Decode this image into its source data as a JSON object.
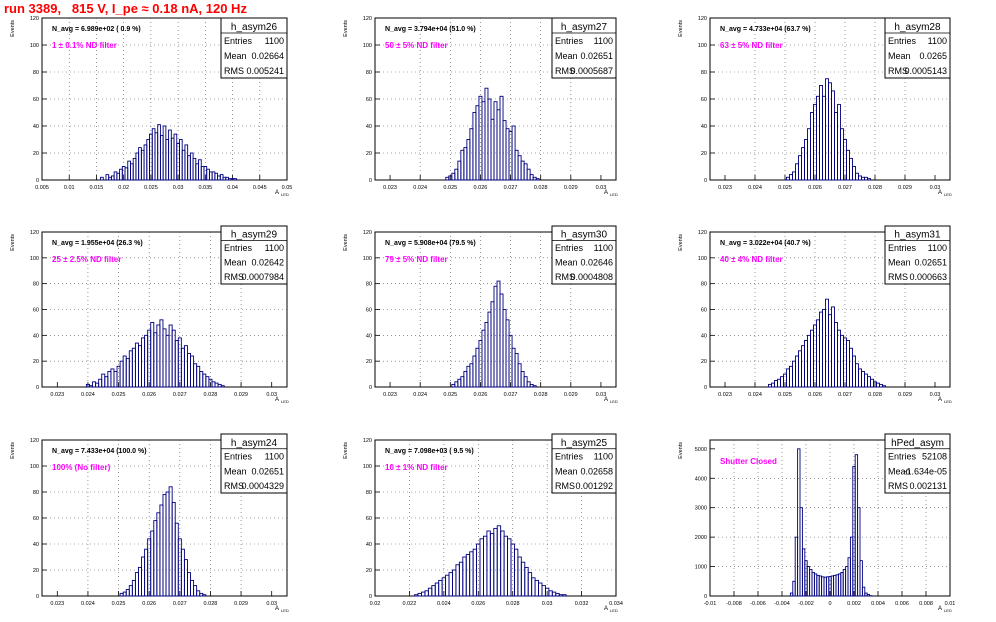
{
  "page": {
    "title": "run 3389,   815 V, I_pe ≈ 0.18 nA, 120 Hz"
  },
  "common": {
    "ylabel": "Events",
    "xlabel": "A",
    "xlabel_sub": "LED",
    "stats_labels": [
      "Entries",
      "Mean",
      "RMS"
    ]
  },
  "chart_data": [
    {
      "type": "bar",
      "hist": "h_asym26",
      "info": "N_avg = 6.989e+02 ( 0.9 %)",
      "filter": "1 ± 0.1% ND filter",
      "entries": "1100",
      "mean": "0.02664",
      "rms": "0.005241",
      "xlim": [
        0.005,
        0.05
      ],
      "ylim": [
        0,
        120
      ],
      "xticks": [
        "0.005",
        "0.01",
        "0.015",
        "0.02",
        "0.025",
        "0.03",
        "0.035",
        "0.04",
        "0.045",
        "0.05"
      ],
      "yticks": [
        "0",
        "20",
        "40",
        "60",
        "80",
        "100",
        "120"
      ],
      "x": [
        0.016,
        0.0165,
        0.017,
        0.0175,
        0.018,
        0.0185,
        0.019,
        0.0195,
        0.02,
        0.0205,
        0.021,
        0.0215,
        0.022,
        0.0225,
        0.023,
        0.0235,
        0.024,
        0.0245,
        0.025,
        0.0255,
        0.026,
        0.0265,
        0.027,
        0.0275,
        0.028,
        0.0285,
        0.029,
        0.0295,
        0.03,
        0.0305,
        0.031,
        0.0315,
        0.032,
        0.0325,
        0.033,
        0.0335,
        0.034,
        0.0345,
        0.035,
        0.0355,
        0.036,
        0.0365,
        0.037,
        0.0375,
        0.038,
        0.0385,
        0.039,
        0.0395,
        0.04,
        0.0405
      ],
      "values": [
        2,
        0,
        4,
        2,
        3,
        6,
        5,
        8,
        10,
        9,
        14,
        12,
        16,
        20,
        24,
        22,
        26,
        30,
        34,
        38,
        35,
        41,
        33,
        40,
        30,
        37,
        31,
        34,
        27,
        30,
        22,
        26,
        18,
        20,
        16,
        12,
        15,
        10,
        10,
        8,
        6,
        6,
        5,
        3,
        4,
        2,
        2,
        1,
        1,
        1
      ]
    },
    {
      "type": "bar",
      "hist": "h_asym27",
      "info": "N_avg = 3.794e+04 (51.0 %)",
      "filter": "50 ± 5% ND filter",
      "entries": "1100",
      "mean": "0.02651",
      "rms": "0.0005687",
      "xlim": [
        0.0225,
        0.0305
      ],
      "ylim": [
        0,
        120
      ],
      "xticks": [
        "0.023",
        "0.024",
        "0.025",
        "0.026",
        "0.027",
        "0.028",
        "0.029",
        "0.03"
      ],
      "yticks": [
        "0",
        "20",
        "40",
        "60",
        "80",
        "100",
        "120"
      ],
      "x": [
        0.0249,
        0.025,
        0.0251,
        0.0252,
        0.0253,
        0.0254,
        0.0255,
        0.0256,
        0.0257,
        0.0258,
        0.0259,
        0.026,
        0.0261,
        0.0262,
        0.0263,
        0.0264,
        0.0265,
        0.0266,
        0.0267,
        0.0268,
        0.0269,
        0.027,
        0.0271,
        0.0272,
        0.0273,
        0.0274,
        0.0275,
        0.0276,
        0.0277,
        0.0278,
        0.0279
      ],
      "values": [
        2,
        3,
        5,
        8,
        14,
        22,
        24,
        30,
        38,
        50,
        55,
        62,
        58,
        68,
        60,
        45,
        58,
        52,
        62,
        44,
        38,
        36,
        40,
        22,
        18,
        14,
        12,
        8,
        4,
        2,
        1
      ]
    },
    {
      "type": "bar",
      "hist": "h_asym28",
      "info": "N_avg = 4.733e+04 (63.7 %)",
      "filter": "63 ± 5% ND filter",
      "entries": "1100",
      "mean": "0.0265",
      "rms": "0.0005143",
      "xlim": [
        0.0225,
        0.0305
      ],
      "ylim": [
        0,
        120
      ],
      "xticks": [
        "0.023",
        "0.024",
        "0.025",
        "0.026",
        "0.027",
        "0.028",
        "0.029",
        "0.03"
      ],
      "yticks": [
        "0",
        "20",
        "40",
        "60",
        "80",
        "100",
        "120"
      ],
      "x": [
        0.0251,
        0.0252,
        0.0253,
        0.0254,
        0.0255,
        0.0256,
        0.0257,
        0.0258,
        0.0259,
        0.026,
        0.0261,
        0.0262,
        0.0263,
        0.0264,
        0.0265,
        0.0266,
        0.0267,
        0.0268,
        0.0269,
        0.027,
        0.0271,
        0.0272,
        0.0273,
        0.0274,
        0.0275,
        0.0276,
        0.0277,
        0.0278
      ],
      "values": [
        2,
        4,
        6,
        12,
        18,
        24,
        30,
        38,
        50,
        56,
        62,
        70,
        62,
        75,
        72,
        66,
        50,
        56,
        38,
        30,
        22,
        16,
        10,
        5,
        3,
        2,
        2,
        1
      ]
    },
    {
      "type": "bar",
      "hist": "h_asym29",
      "info": "N_avg = 1.955e+04 (26.3 %)",
      "filter": "25 ± 2.5% ND filter",
      "entries": "1100",
      "mean": "0.02642",
      "rms": "0.0007984",
      "xlim": [
        0.0225,
        0.0305
      ],
      "ylim": [
        0,
        120
      ],
      "xticks": [
        "0.023",
        "0.024",
        "0.025",
        "0.026",
        "0.027",
        "0.028",
        "0.029",
        "0.03"
      ],
      "yticks": [
        "0",
        "20",
        "40",
        "60",
        "80",
        "100",
        "120"
      ],
      "x": [
        0.024,
        0.0241,
        0.0242,
        0.0243,
        0.0244,
        0.0245,
        0.0246,
        0.0247,
        0.0248,
        0.0249,
        0.025,
        0.0251,
        0.0252,
        0.0253,
        0.0254,
        0.0255,
        0.0256,
        0.0257,
        0.0258,
        0.0259,
        0.026,
        0.0261,
        0.0262,
        0.0263,
        0.0264,
        0.0265,
        0.0266,
        0.0267,
        0.0268,
        0.0269,
        0.027,
        0.0271,
        0.0272,
        0.0273,
        0.0274,
        0.0275,
        0.0276,
        0.0277,
        0.0278,
        0.0279,
        0.028,
        0.0281,
        0.0282,
        0.0283,
        0.0284
      ],
      "values": [
        2,
        1,
        4,
        3,
        6,
        10,
        8,
        12,
        14,
        12,
        16,
        20,
        24,
        22,
        28,
        30,
        34,
        32,
        38,
        40,
        44,
        50,
        42,
        48,
        52,
        45,
        40,
        48,
        44,
        36,
        38,
        30,
        32,
        26,
        24,
        18,
        16,
        12,
        10,
        8,
        6,
        4,
        3,
        2,
        1
      ]
    },
    {
      "type": "bar",
      "hist": "h_asym30",
      "info": "N_avg = 5.908e+04 (79.5 %)",
      "filter": "79 ± 5% ND filter",
      "entries": "1100",
      "mean": "0.02646",
      "rms": "0.0004808",
      "xlim": [
        0.0225,
        0.0305
      ],
      "ylim": [
        0,
        120
      ],
      "xticks": [
        "0.023",
        "0.024",
        "0.025",
        "0.026",
        "0.027",
        "0.028",
        "0.029",
        "0.03"
      ],
      "yticks": [
        "0",
        "20",
        "40",
        "60",
        "80",
        "100",
        "120"
      ],
      "x": [
        0.0251,
        0.0252,
        0.0253,
        0.0254,
        0.0255,
        0.0256,
        0.0257,
        0.0258,
        0.0259,
        0.026,
        0.0261,
        0.0262,
        0.0263,
        0.0264,
        0.0265,
        0.0266,
        0.0267,
        0.0268,
        0.0269,
        0.027,
        0.0271,
        0.0272,
        0.0273,
        0.0274,
        0.0275,
        0.0276,
        0.0277,
        0.0278
      ],
      "values": [
        2,
        4,
        6,
        8,
        12,
        16,
        18,
        24,
        30,
        36,
        44,
        50,
        58,
        66,
        78,
        82,
        72,
        60,
        52,
        40,
        30,
        26,
        18,
        12,
        8,
        4,
        2,
        1
      ]
    },
    {
      "type": "bar",
      "hist": "h_asym31",
      "info": "N_avg = 3.022e+04 (40.7 %)",
      "filter": "40 ± 4% ND filter",
      "entries": "1100",
      "mean": "0.02651",
      "rms": "0.000663",
      "xlim": [
        0.0225,
        0.0305
      ],
      "ylim": [
        0,
        120
      ],
      "xticks": [
        "0.023",
        "0.024",
        "0.025",
        "0.026",
        "0.027",
        "0.028",
        "0.029",
        "0.03"
      ],
      "yticks": [
        "0",
        "20",
        "40",
        "60",
        "80",
        "100",
        "120"
      ],
      "x": [
        0.0245,
        0.0246,
        0.0247,
        0.0248,
        0.0249,
        0.025,
        0.0251,
        0.0252,
        0.0253,
        0.0254,
        0.0255,
        0.0256,
        0.0257,
        0.0258,
        0.0259,
        0.026,
        0.0261,
        0.0262,
        0.0263,
        0.0264,
        0.0265,
        0.0266,
        0.0267,
        0.0268,
        0.0269,
        0.027,
        0.0271,
        0.0272,
        0.0273,
        0.0274,
        0.0275,
        0.0276,
        0.0277,
        0.0278,
        0.0279,
        0.028,
        0.0281,
        0.0282,
        0.0283
      ],
      "values": [
        2,
        3,
        5,
        6,
        8,
        10,
        14,
        16,
        20,
        24,
        28,
        32,
        36,
        40,
        44,
        48,
        52,
        58,
        60,
        68,
        56,
        62,
        50,
        44,
        40,
        38,
        36,
        30,
        24,
        18,
        14,
        12,
        10,
        8,
        6,
        4,
        3,
        2,
        1
      ]
    },
    {
      "type": "bar",
      "hist": "h_asym24",
      "info": "N_avg = 7.433e+04 (100.0 %)",
      "filter": "100% (No filter)",
      "entries": "1100",
      "mean": "0.02651",
      "rms": "0.0004329",
      "xlim": [
        0.0225,
        0.0305
      ],
      "ylim": [
        0,
        120
      ],
      "xticks": [
        "0.023",
        "0.024",
        "0.025",
        "0.026",
        "0.027",
        "0.028",
        "0.029",
        "0.03"
      ],
      "yticks": [
        "0",
        "20",
        "40",
        "60",
        "80",
        "100",
        "120"
      ],
      "x": [
        0.0251,
        0.0252,
        0.0253,
        0.0254,
        0.0255,
        0.0256,
        0.0257,
        0.0258,
        0.0259,
        0.026,
        0.0261,
        0.0262,
        0.0263,
        0.0264,
        0.0265,
        0.0266,
        0.0267,
        0.0268,
        0.0269,
        0.027,
        0.0271,
        0.0272,
        0.0273,
        0.0274,
        0.0275,
        0.0276,
        0.0277,
        0.0278
      ],
      "values": [
        2,
        3,
        5,
        8,
        12,
        18,
        22,
        30,
        36,
        44,
        50,
        58,
        64,
        70,
        78,
        80,
        84,
        72,
        56,
        44,
        36,
        28,
        18,
        12,
        8,
        4,
        2,
        1
      ]
    },
    {
      "type": "bar",
      "hist": "h_asym25",
      "info": "N_avg = 7.098e+03 ( 9.5 %)",
      "filter": "10 ± 1% ND filter",
      "entries": "1100",
      "mean": "0.02658",
      "rms": "0.001292",
      "xlim": [
        0.02,
        0.034
      ],
      "ylim": [
        0,
        120
      ],
      "xticks": [
        "0.02",
        "0.022",
        "0.024",
        "0.026",
        "0.028",
        "0.03",
        "0.032",
        "0.034"
      ],
      "yticks": [
        "0",
        "20",
        "40",
        "60",
        "80",
        "100",
        "120"
      ],
      "x": [
        0.0224,
        0.0226,
        0.0228,
        0.023,
        0.0232,
        0.0234,
        0.0236,
        0.0238,
        0.024,
        0.0242,
        0.0244,
        0.0246,
        0.0248,
        0.025,
        0.0252,
        0.0254,
        0.0256,
        0.0258,
        0.026,
        0.0262,
        0.0264,
        0.0266,
        0.0268,
        0.027,
        0.0272,
        0.0274,
        0.0276,
        0.0278,
        0.028,
        0.0282,
        0.0284,
        0.0286,
        0.0288,
        0.029,
        0.0292,
        0.0294,
        0.0296,
        0.0298,
        0.03,
        0.0302,
        0.0304,
        0.0306,
        0.0308,
        0.031
      ],
      "values": [
        1,
        2,
        3,
        4,
        6,
        8,
        10,
        12,
        14,
        16,
        18,
        20,
        24,
        26,
        30,
        32,
        34,
        36,
        40,
        44,
        46,
        50,
        48,
        52,
        54,
        50,
        46,
        44,
        40,
        36,
        30,
        26,
        22,
        18,
        14,
        12,
        10,
        8,
        6,
        4,
        3,
        2,
        1,
        1
      ]
    },
    {
      "type": "bar",
      "hist": "hPed_asym",
      "info": "",
      "filter": "Shutter Closed",
      "entries": "52108",
      "mean": "-1.634e-05",
      "rms": "0.002131",
      "xlim": [
        -0.01,
        0.01
      ],
      "ylim": [
        0,
        5300
      ],
      "xticks": [
        "-0.01",
        "-0.008",
        "-0.006",
        "-0.004",
        "-0.002",
        "0",
        "0.002",
        "0.004",
        "0.006",
        "0.008",
        "0.01"
      ],
      "yticks": [
        "0",
        "1000",
        "2000",
        "3000",
        "4000",
        "5000"
      ],
      "x": [
        -0.0032,
        -0.003,
        -0.0028,
        -0.0026,
        -0.0024,
        -0.0022,
        -0.002,
        -0.0018,
        -0.0016,
        -0.0014,
        -0.0012,
        -0.001,
        -0.0008,
        -0.0006,
        -0.0004,
        -0.0002,
        0.0,
        0.0002,
        0.0004,
        0.0006,
        0.0008,
        0.001,
        0.0012,
        0.0014,
        0.0016,
        0.0018,
        0.002,
        0.0022,
        0.0024,
        0.0026,
        0.0028,
        0.003,
        0.0032,
        0.0034
      ],
      "values": [
        100,
        500,
        2000,
        5000,
        3000,
        1600,
        1200,
        1000,
        900,
        800,
        750,
        700,
        680,
        650,
        640,
        650,
        660,
        680,
        700,
        720,
        750,
        800,
        900,
        1000,
        1300,
        2000,
        4400,
        4800,
        3000,
        1200,
        300,
        100,
        50,
        10
      ]
    }
  ]
}
